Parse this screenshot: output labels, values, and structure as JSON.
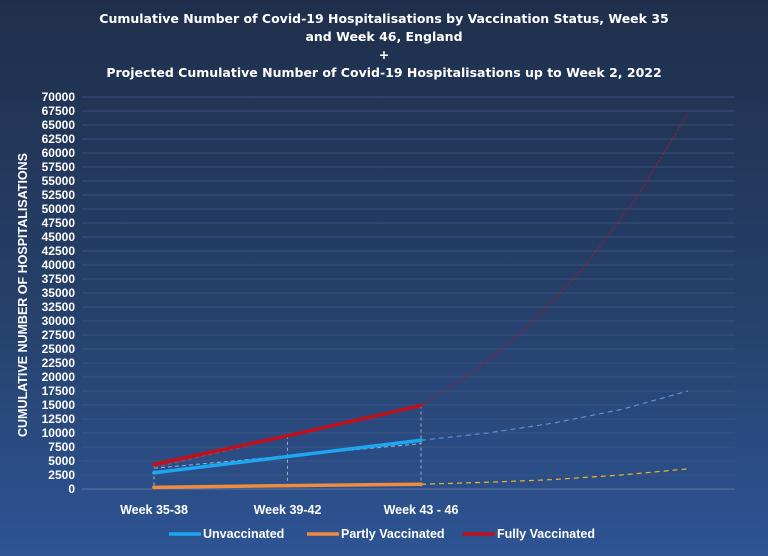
{
  "chart_data": {
    "type": "line",
    "title_lines": [
      "Cumulative Number of Covid-19 Hospitalisations by Vaccination Status, Week 35",
      "and Week 46, England",
      "+",
      "Projected Cumulative Number of Covid-19 Hospitalisations up to Week 2, 2022"
    ],
    "xlabel": "",
    "ylabel": "CUMULATIVE NUMBER OF HOSPITALISATIONS",
    "categories": [
      "Week 35-38",
      "Week 39-42",
      "Week 43 - 46"
    ],
    "ylim": [
      0,
      70000
    ],
    "ytick_step": 2500,
    "grid": true,
    "legend_position": "bottom",
    "series": [
      {
        "name": "Unvaccinated",
        "color": "#1ea7f0",
        "values": [
          2900,
          5800,
          8700
        ]
      },
      {
        "name": "Partly Vaccinated",
        "color": "#f08a3c",
        "values": [
          300,
          600,
          850
        ]
      },
      {
        "name": "Fully Vaccinated",
        "color": "#c0101c",
        "values": [
          4400,
          9500,
          14900
        ]
      }
    ],
    "projections": [
      {
        "series": "Unvaccinated",
        "style": "dashed",
        "color": "#5b8fd6",
        "x": [
          2,
          2.5,
          3,
          3.5,
          4
        ],
        "values": [
          8700,
          10000,
          11800,
          14200,
          17500
        ]
      },
      {
        "series": "Partly Vaccinated",
        "style": "dashed",
        "color": "#f0b429",
        "x": [
          2,
          2.5,
          3,
          3.5,
          4
        ],
        "values": [
          850,
          1200,
          1700,
          2500,
          3600
        ]
      },
      {
        "series": "Fully Vaccinated",
        "style": "dotted",
        "color": "#c0101c",
        "x": [
          2,
          2.4,
          2.8,
          3.2,
          3.6,
          4
        ],
        "values": [
          14900,
          21000,
          29000,
          39000,
          51500,
          67000
        ]
      }
    ],
    "trendlines": [
      {
        "series": "Unvaccinated",
        "color": "#8ab6e8",
        "values": [
          3700,
          8100
        ]
      },
      {
        "series": "Fully Vaccinated",
        "color": "#d04040",
        "values": [
          3800,
          15000
        ]
      }
    ]
  }
}
